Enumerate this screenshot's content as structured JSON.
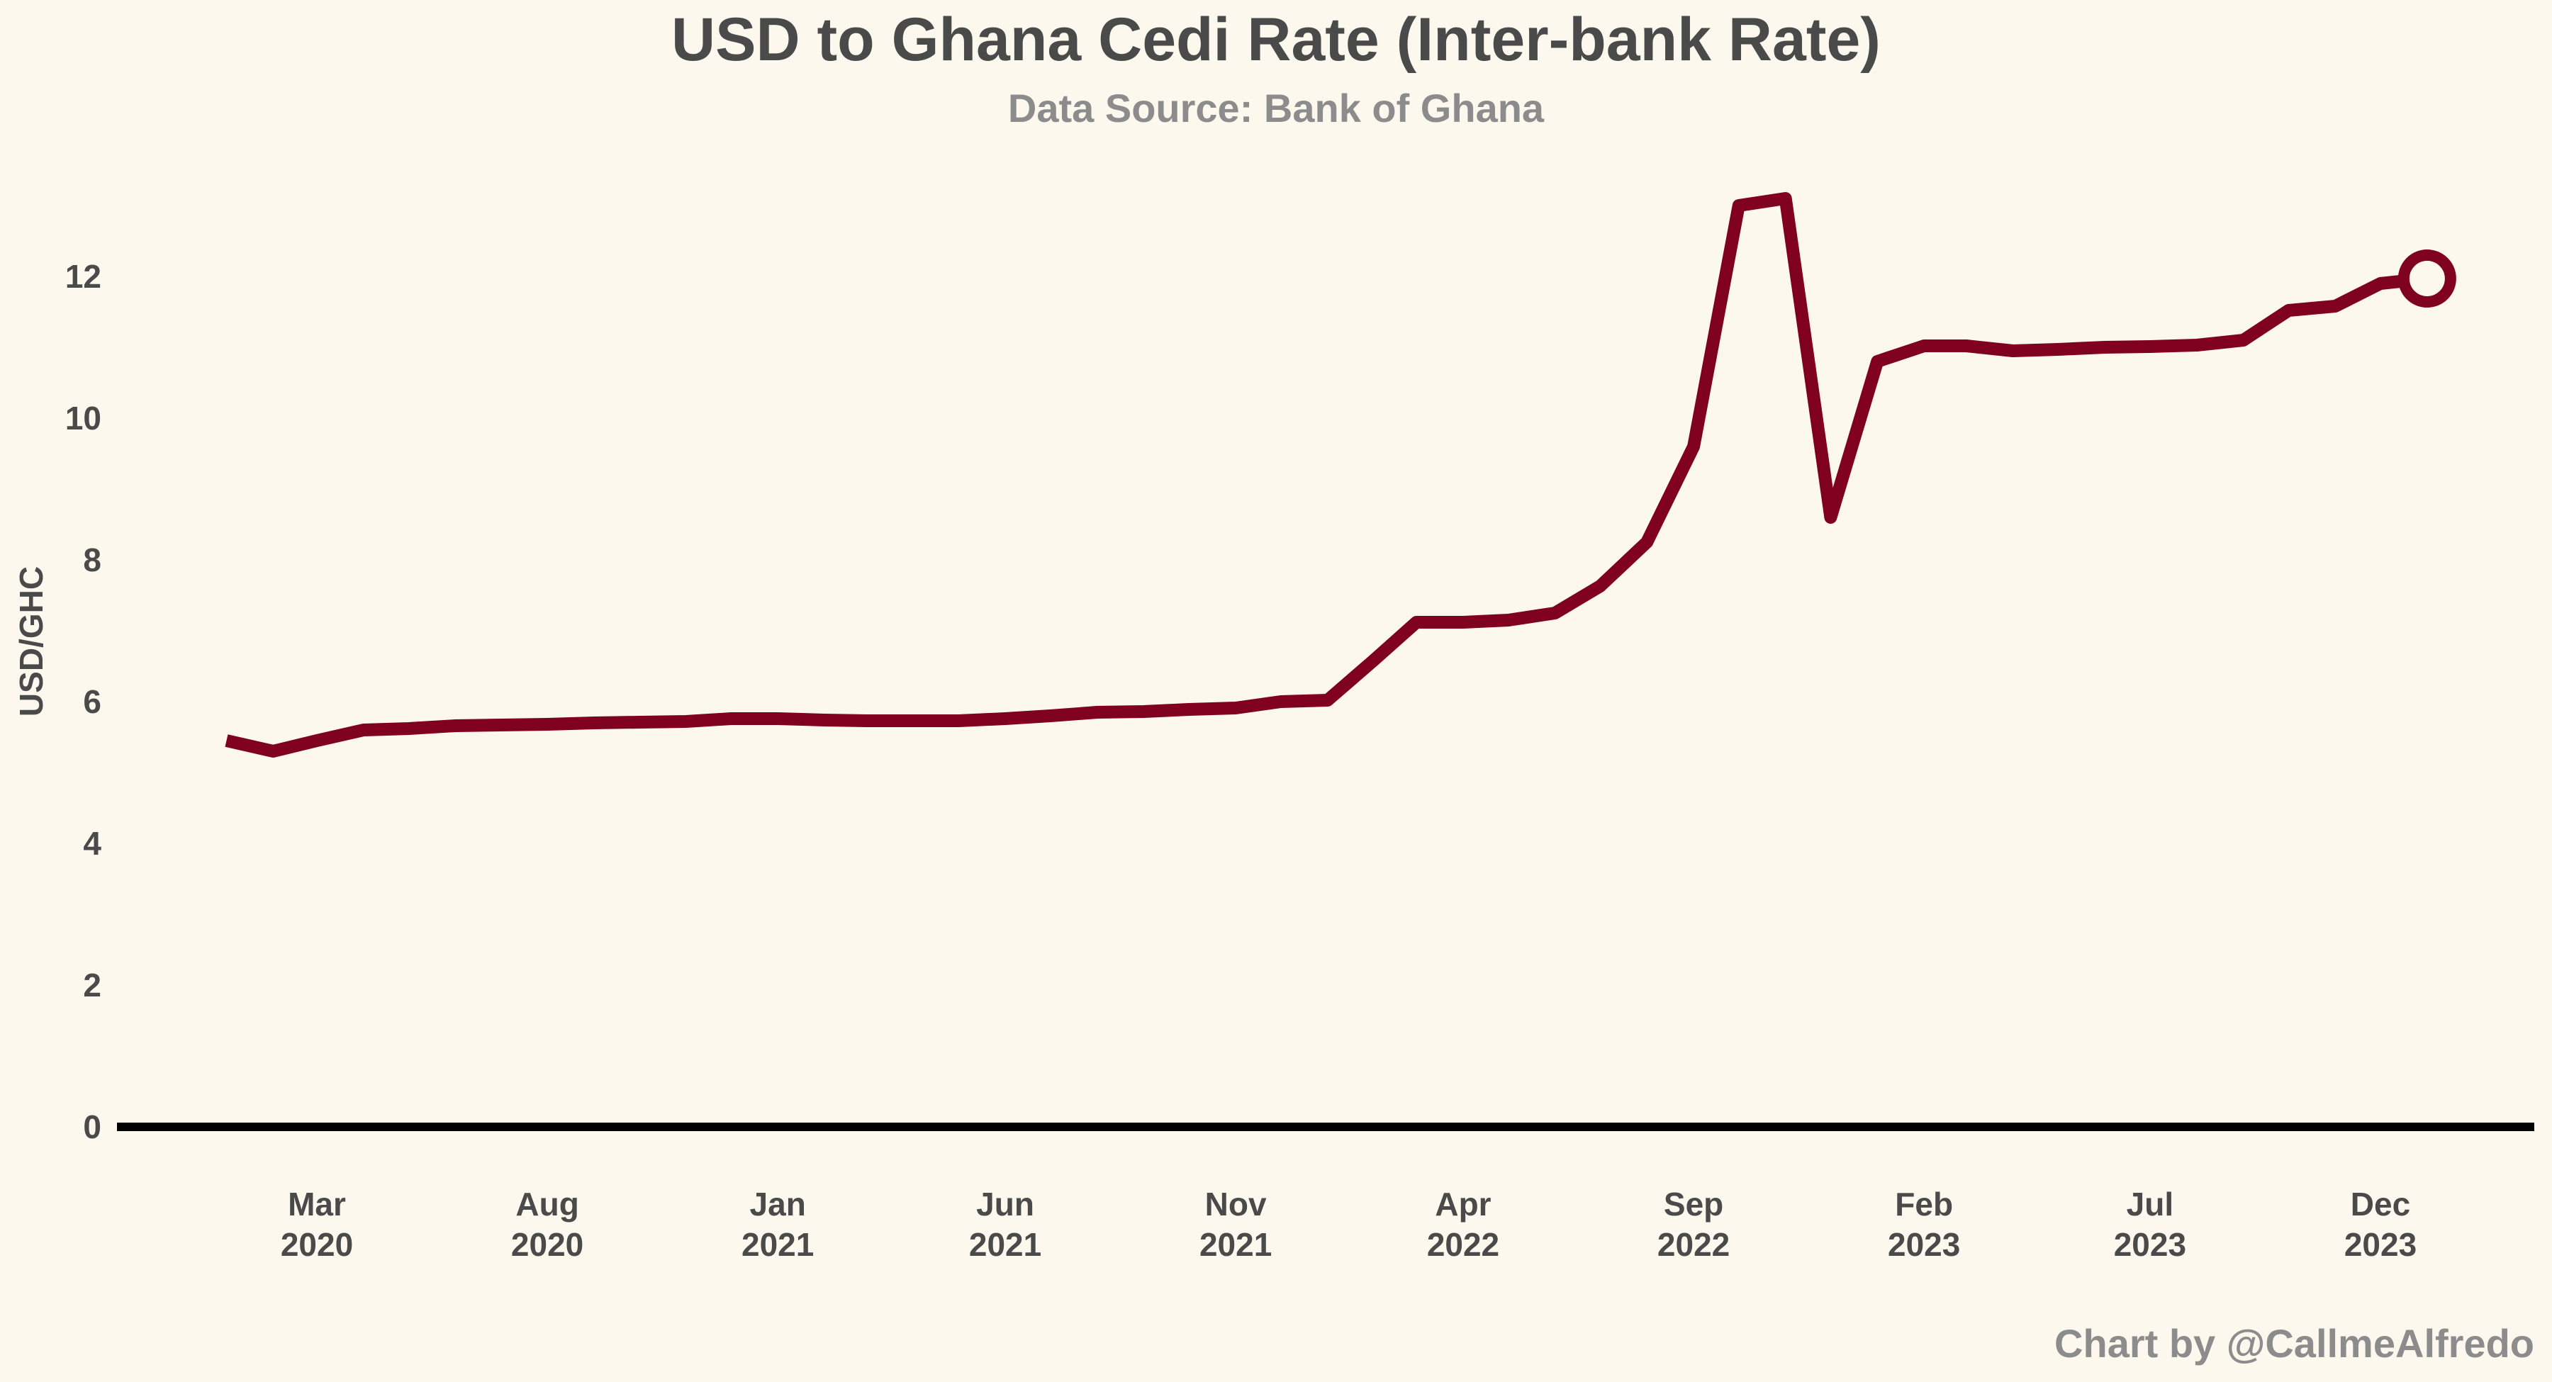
{
  "chart_data": {
    "type": "line",
    "title": "USD to Ghana Cedi Rate (Inter-bank Rate)",
    "subtitle": "Data Source: Bank of Ghana",
    "xlabel": "",
    "ylabel": "USD/GHC",
    "caption": "Chart by @CallmeAlfredo",
    "ylim": [
      0,
      13.5
    ],
    "xlim": [
      "2019-11-01",
      "2024-03-01"
    ],
    "y_ticks": [
      0,
      2,
      4,
      6,
      8,
      10,
      12
    ],
    "y_tick_labels": [
      "0",
      "2",
      "4",
      "6",
      "8",
      "10",
      "12"
    ],
    "x_ticks": [
      {
        "date": "2020-03-01",
        "line1": "Mar",
        "line2": "2020"
      },
      {
        "date": "2020-08-01",
        "line1": "Aug",
        "line2": "2020"
      },
      {
        "date": "2021-01-01",
        "line1": "Jan",
        "line2": "2021"
      },
      {
        "date": "2021-06-01",
        "line1": "Jun",
        "line2": "2021"
      },
      {
        "date": "2021-11-01",
        "line1": "Nov",
        "line2": "2021"
      },
      {
        "date": "2022-04-01",
        "line1": "Apr",
        "line2": "2022"
      },
      {
        "date": "2022-09-01",
        "line1": "Sep",
        "line2": "2022"
      },
      {
        "date": "2023-02-01",
        "line1": "Feb",
        "line2": "2023"
      },
      {
        "date": "2023-07-01",
        "line1": "Jul",
        "line2": "2023"
      },
      {
        "date": "2023-12-01",
        "line1": "Dec",
        "line2": "2023"
      }
    ],
    "grid": false,
    "line_color": "#800020",
    "zero_line_color": "#000000",
    "background": "#fdf8ee",
    "end_marker": "open-circle",
    "series": [
      {
        "x": [
          "2020-01-01",
          "2020-02-01",
          "2020-03-01",
          "2020-04-01",
          "2020-05-01",
          "2020-06-01",
          "2020-07-01",
          "2020-08-01",
          "2020-09-01",
          "2020-10-01",
          "2020-11-01",
          "2020-12-01",
          "2021-01-01",
          "2021-02-01",
          "2021-03-01",
          "2021-04-01",
          "2021-05-01",
          "2021-06-01",
          "2021-07-01",
          "2021-08-01",
          "2021-09-01",
          "2021-10-01",
          "2021-11-01",
          "2021-12-01",
          "2022-01-01",
          "2022-02-01",
          "2022-03-01",
          "2022-04-01",
          "2022-05-01",
          "2022-06-01",
          "2022-07-01",
          "2022-08-01",
          "2022-09-01",
          "2022-10-01",
          "2022-11-01",
          "2022-12-01",
          "2023-01-01",
          "2023-02-01",
          "2023-03-01",
          "2023-04-01",
          "2023-05-01",
          "2023-06-01",
          "2023-07-01",
          "2023-08-01",
          "2023-09-01",
          "2023-10-01",
          "2023-11-01",
          "2023-12-01",
          "2024-01-01"
        ],
        "values": [
          5.45,
          5.3,
          5.45,
          5.6,
          5.62,
          5.66,
          5.67,
          5.68,
          5.7,
          5.71,
          5.72,
          5.76,
          5.76,
          5.74,
          5.73,
          5.73,
          5.73,
          5.76,
          5.8,
          5.85,
          5.86,
          5.89,
          5.91,
          6.0,
          6.02,
          6.59,
          7.12,
          7.12,
          7.15,
          7.25,
          7.63,
          8.25,
          9.6,
          13.0,
          13.1,
          8.6,
          10.8,
          11.02,
          11.02,
          10.95,
          10.97,
          11.0,
          11.01,
          11.03,
          11.1,
          11.52,
          11.58,
          11.9,
          11.97
        ]
      }
    ]
  }
}
